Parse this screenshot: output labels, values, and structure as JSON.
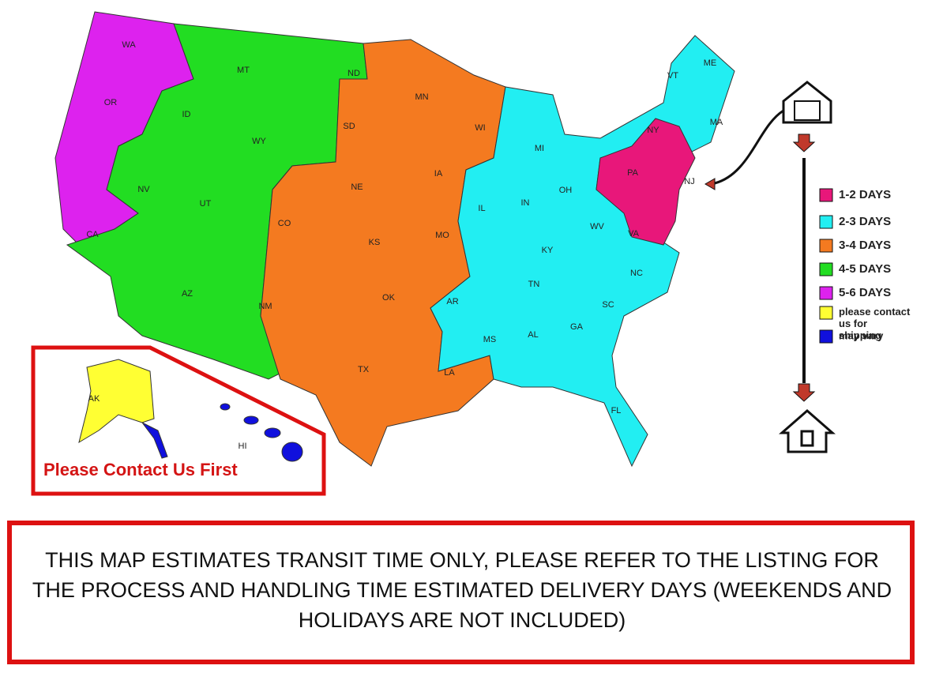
{
  "map": {
    "state_labels": [
      "WA",
      "OR",
      "CA",
      "NV",
      "ID",
      "MT",
      "WY",
      "UT",
      "AZ",
      "CO",
      "NM",
      "ND",
      "SD",
      "NE",
      "KS",
      "OK",
      "TX",
      "MN",
      "IA",
      "MO",
      "AR",
      "LA",
      "WI",
      "IL",
      "MI",
      "IN",
      "OH",
      "KY",
      "TN",
      "MS",
      "AL",
      "GA",
      "FL",
      "SC",
      "NC",
      "VA",
      "WV",
      "PA",
      "NY",
      "VT",
      "ME",
      "MA",
      "NJ",
      "AK",
      "HI"
    ]
  },
  "legend": [
    {
      "label": "1-2 DAYS",
      "color": "#e8177a"
    },
    {
      "label": "2-3 DAYS",
      "color": "#22eef2"
    },
    {
      "label": "3-4 DAYS",
      "color": "#f47a20"
    },
    {
      "label": "4-5 DAYS",
      "color": "#22dd22"
    },
    {
      "label": "5-6 DAYS",
      "color": "#dd22ee"
    },
    {
      "label": "please contact us for shipping",
      "color": "#ffff33"
    },
    {
      "label": "may vary",
      "color": "#1010dd"
    }
  ],
  "alaska_hawaii_note": "Please Contact Us First",
  "notice": "THIS MAP ESTIMATES TRANSIT TIME ONLY, PLEASE REFER TO THE LISTING FOR THE PROCESS AND HANDLING TIME ESTIMATED DELIVERY DAYS (WEEKENDS AND HOLIDAYS ARE NOT INCLUDED)"
}
